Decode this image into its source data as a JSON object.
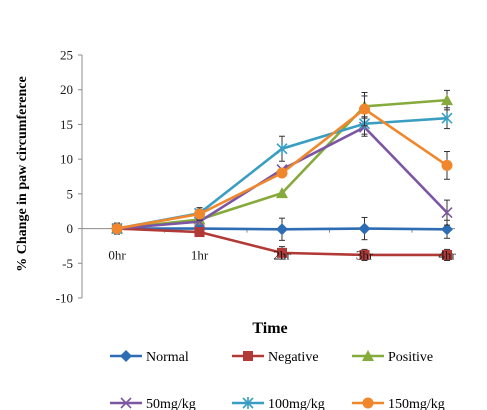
{
  "chart_data": {
    "type": "line",
    "xlabel": "Time",
    "ylabel": "% Change in paw circumference",
    "categories": [
      "0hr",
      "1hr",
      "2hr",
      "3hr",
      "4hr"
    ],
    "ylim": [
      -10,
      25
    ],
    "yticks": [
      25,
      20,
      15,
      10,
      5,
      0,
      -5,
      -10
    ],
    "grid": false,
    "legend_position": "bottom",
    "series": [
      {
        "name": "Normal",
        "color": "#2E6DB4",
        "marker": "diamond",
        "values": [
          0,
          0,
          -0.1,
          0,
          -0.1
        ],
        "errors": [
          0.8,
          0,
          1.6,
          1.6,
          1.3
        ]
      },
      {
        "name": "Negative",
        "color": "#B23A36",
        "marker": "square",
        "values": [
          0,
          -0.5,
          -3.5,
          -3.8,
          -3.8
        ],
        "errors": [
          0,
          0.5,
          0.9,
          0.8,
          0.8
        ]
      },
      {
        "name": "Positive",
        "color": "#86AA3B",
        "marker": "triangle",
        "values": [
          0,
          1.3,
          5.1,
          17.6,
          18.5
        ],
        "errors": [
          0,
          0.6,
          0,
          1.5,
          1.4
        ]
      },
      {
        "name": "50mg/kg",
        "color": "#7C56A3",
        "marker": "x",
        "values": [
          0,
          1.0,
          8.5,
          14.6,
          2.3
        ],
        "errors": [
          0,
          0,
          0,
          1.3,
          1.8
        ]
      },
      {
        "name": "100mg/kg",
        "color": "#3A9EC2",
        "marker": "star",
        "values": [
          0,
          2.2,
          11.5,
          15.1,
          15.9
        ],
        "errors": [
          0,
          0.8,
          1.8,
          1.5,
          1.5
        ]
      },
      {
        "name": "150mg/kg",
        "color": "#F0872C",
        "marker": "circle",
        "values": [
          0,
          2.1,
          8.0,
          17.2,
          9.1
        ],
        "errors": [
          0,
          0.9,
          0,
          2.4,
          2.0
        ]
      }
    ]
  }
}
